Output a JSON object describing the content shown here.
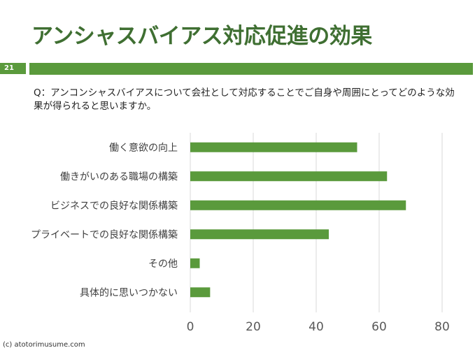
{
  "page": {
    "title": "アンシャスバイアス対応促進の効果",
    "page_number": "21",
    "question": "Q：アンコンシャスバイアスについて会社として対応することでご自身や周囲にとってどのような効果が得られると思いますか。",
    "copyright": "(c) atotorimusume.com",
    "accent_color": "#5a9a3c",
    "title_color": "#3f6f32"
  },
  "chart_data": {
    "type": "bar",
    "orientation": "horizontal",
    "categories": [
      "働く意欲の向上",
      "働きがいのある職場の構築",
      "ビジネスでの良好な関係構築",
      "プライベートでの良好な関係構築",
      "その他",
      "具体的に思いつかない"
    ],
    "values": [
      53,
      62.5,
      68.5,
      44,
      3,
      6.3
    ],
    "xlim": [
      0,
      90
    ],
    "xticks": [
      "0",
      "20",
      "40",
      "60",
      "80"
    ],
    "grid": true,
    "bar_color": "#5a9a3c"
  }
}
